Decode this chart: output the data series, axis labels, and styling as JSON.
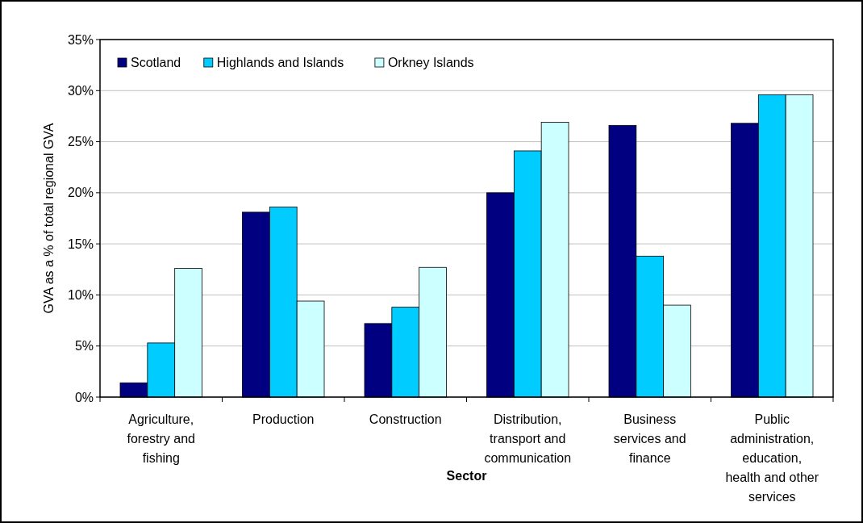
{
  "chart_data": {
    "type": "bar",
    "xlabel": "Sector",
    "ylabel": "GVA as a % of total regional GVA",
    "categories": [
      "Agriculture, forestry and fishing",
      "Production",
      "Construction",
      "Distribution, transport and communication",
      "Business services and finance",
      "Public administration, education, health and other services"
    ],
    "series": [
      {
        "name": "Scotland",
        "color": "#000080",
        "values": [
          1.4,
          18.1,
          7.2,
          20.0,
          26.6,
          26.8
        ]
      },
      {
        "name": "Highlands and Islands",
        "color": "#00ccff",
        "values": [
          5.3,
          18.6,
          8.8,
          24.1,
          13.8,
          29.6
        ]
      },
      {
        "name": "Orkney Islands",
        "color": "#ccffff",
        "values": [
          12.6,
          9.4,
          12.7,
          26.9,
          9.0,
          29.6
        ]
      }
    ],
    "ylim": [
      0,
      35
    ],
    "yticks": [
      {
        "value": 0,
        "label": "0%"
      },
      {
        "value": 5,
        "label": "5%"
      },
      {
        "value": 10,
        "label": "10%"
      },
      {
        "value": 15,
        "label": "15%"
      },
      {
        "value": 20,
        "label": "20%"
      },
      {
        "value": 25,
        "label": "25%"
      },
      {
        "value": 30,
        "label": "30%"
      },
      {
        "value": 35,
        "label": "35%"
      }
    ],
    "grid": "y",
    "legend": "top left"
  }
}
